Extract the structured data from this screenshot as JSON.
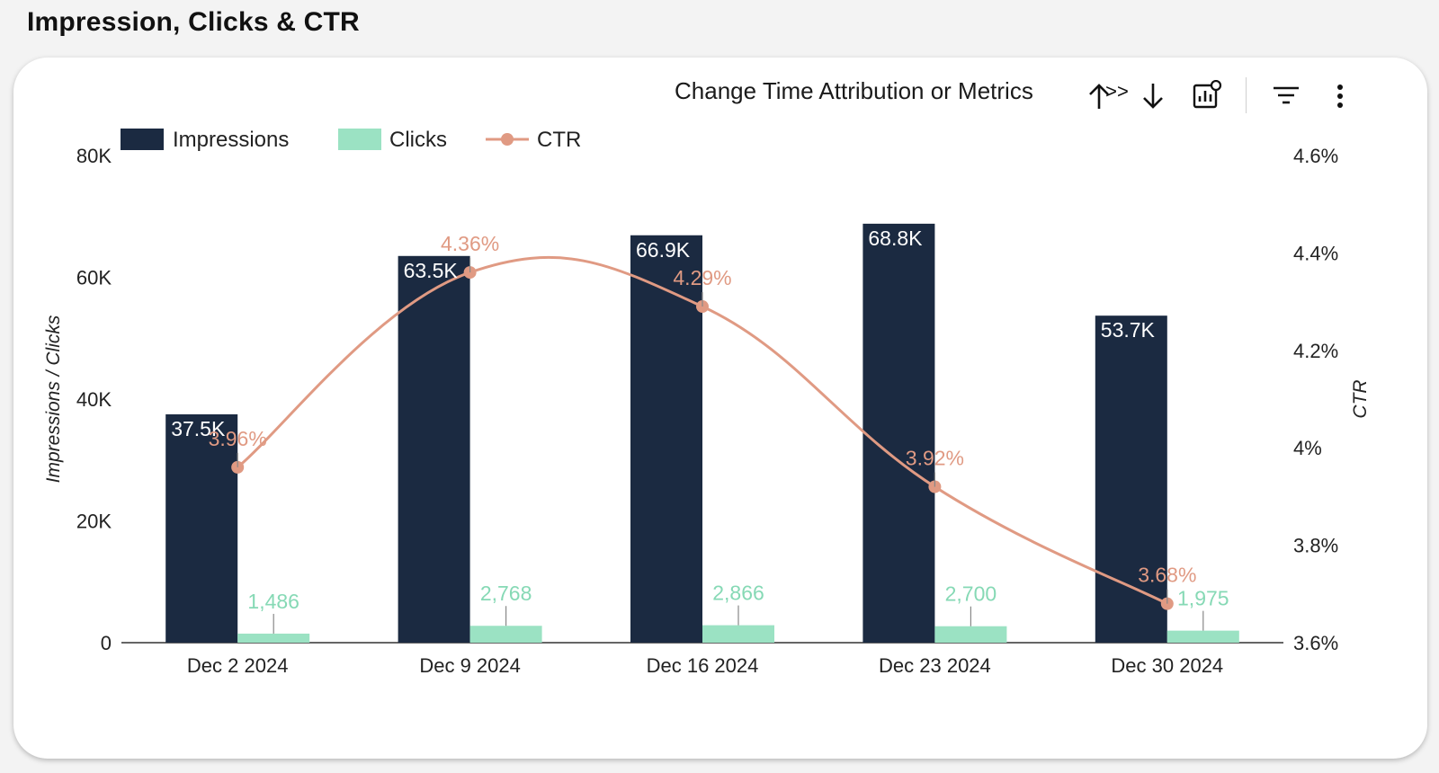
{
  "header": {
    "title": "Impression, Clicks & CTR"
  },
  "toolbar": {
    "label": "Change Time Attribution or Metrics",
    "icons": [
      {
        "name": "sort-up-icon",
        "glyph": "↑"
      },
      {
        "name": "chevron-right-icon",
        "glyph": ">"
      },
      {
        "name": "sort-down-icon",
        "glyph": "↓"
      },
      {
        "name": "chart-settings-icon",
        "glyph": "chart-gear"
      },
      {
        "name": "filter-icon",
        "glyph": "filter"
      },
      {
        "name": "more-options-icon",
        "glyph": "⋮"
      }
    ]
  },
  "colors": {
    "impressions": "#1b2a41",
    "clicks": "#9be2c3",
    "ctr": "#e09a83",
    "clicks_label": "#86d9b5",
    "ctr_label": "#e09a83"
  },
  "chart_data": {
    "type": "bar",
    "categories": [
      "Dec 2 2024",
      "Dec 9 2024",
      "Dec 16 2024",
      "Dec 23 2024",
      "Dec 30 2024"
    ],
    "series": [
      {
        "name": "Impressions",
        "type": "bar",
        "axis": "left",
        "values": [
          37500,
          63500,
          66900,
          68800,
          53700
        ],
        "labels": [
          "37.5K",
          "63.5K",
          "66.9K",
          "68.8K",
          "53.7K"
        ]
      },
      {
        "name": "Clicks",
        "type": "bar",
        "axis": "left",
        "values": [
          1486,
          2768,
          2866,
          2700,
          1975
        ],
        "labels": [
          "1,486",
          "2,768",
          "2,866",
          "2,700",
          "1,975"
        ]
      },
      {
        "name": "CTR",
        "type": "line",
        "axis": "right",
        "values": [
          3.96,
          4.36,
          4.29,
          3.92,
          3.68
        ],
        "labels": [
          "3.96%",
          "4.36%",
          "4.29%",
          "3.92%",
          "3.68%"
        ]
      }
    ],
    "ylabel": "Impressions / Clicks",
    "y2label": "CTR",
    "ylim": [
      0,
      80000
    ],
    "y2lim": [
      3.6,
      4.6
    ],
    "yticks": [
      "0",
      "20K",
      "40K",
      "60K",
      "80K"
    ],
    "y2ticks": [
      "3.6%",
      "3.8%",
      "4%",
      "4.2%",
      "4.4%",
      "4.6%"
    ],
    "legend": "top-left",
    "grid": false
  }
}
